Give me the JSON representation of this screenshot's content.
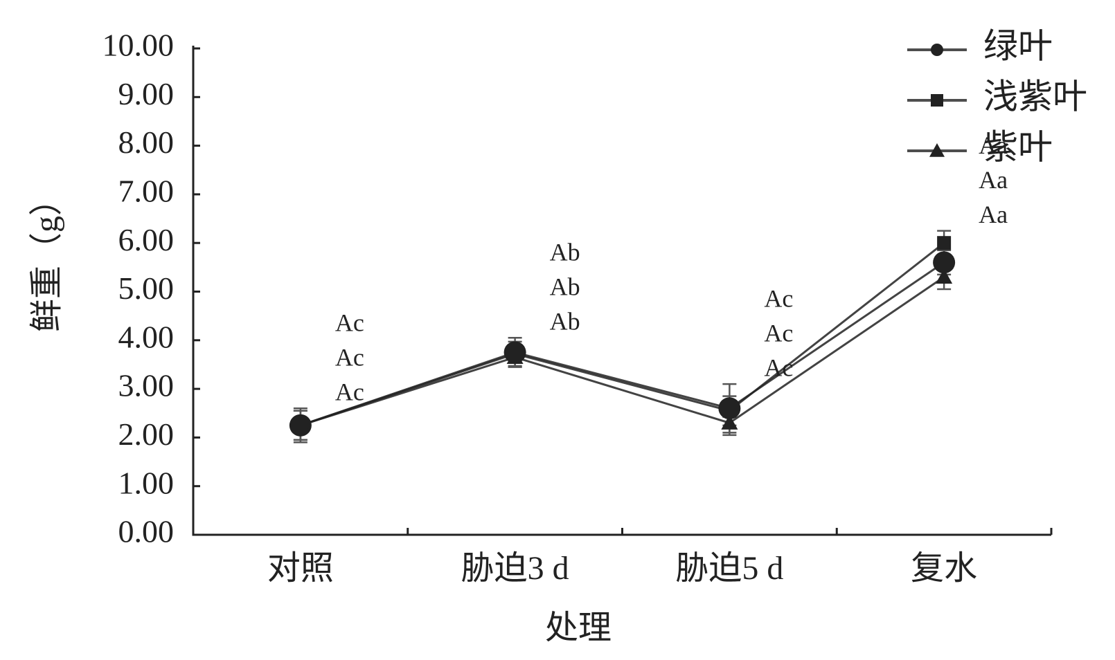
{
  "chart_data": {
    "type": "line",
    "x_label": "处理",
    "y_label": "鲜重（g）",
    "categories": [
      "对照",
      "胁迫3 d",
      "胁迫5 d",
      "复水"
    ],
    "series": [
      {
        "name": "绿叶",
        "color": "#222222",
        "marker": "circle",
        "values": [
          2.25,
          3.75,
          2.6,
          5.6
        ],
        "errors": [
          0.35,
          0.3,
          0.5,
          0.25
        ]
      },
      {
        "name": "浅紫叶",
        "color": "#222222",
        "marker": "square",
        "values": [
          2.25,
          3.72,
          2.55,
          6.0
        ],
        "errors": [
          0.3,
          0.25,
          0.3,
          0.25
        ]
      },
      {
        "name": "紫叶",
        "color": "#222222",
        "marker": "triangle",
        "values": [
          2.25,
          3.65,
          2.3,
          5.3
        ],
        "errors": [
          0.3,
          0.2,
          0.25,
          0.25
        ]
      }
    ],
    "annotations": [
      [
        "Ac",
        "Ac",
        "Ac"
      ],
      [
        "Ab",
        "Ab",
        "Ab"
      ],
      [
        "Ac",
        "Ac",
        "Ac"
      ],
      [
        "Aa",
        "Aa",
        "Aa"
      ]
    ],
    "ylim": [
      0,
      10
    ],
    "yticks": [
      {
        "value": 0,
        "label": "0.00"
      },
      {
        "value": 1,
        "label": "1.00"
      },
      {
        "value": 2,
        "label": "2.00"
      },
      {
        "value": 3,
        "label": "3.00"
      },
      {
        "value": 4,
        "label": "4.00"
      },
      {
        "value": 5,
        "label": "5.00"
      },
      {
        "value": 6,
        "label": "6.00"
      },
      {
        "value": 7,
        "label": "7.00"
      },
      {
        "value": 8,
        "label": "8.00"
      },
      {
        "value": 9,
        "label": "9.00"
      },
      {
        "value": 10,
        "label": "10.00"
      }
    ],
    "legend": "top-right",
    "grid": false
  }
}
